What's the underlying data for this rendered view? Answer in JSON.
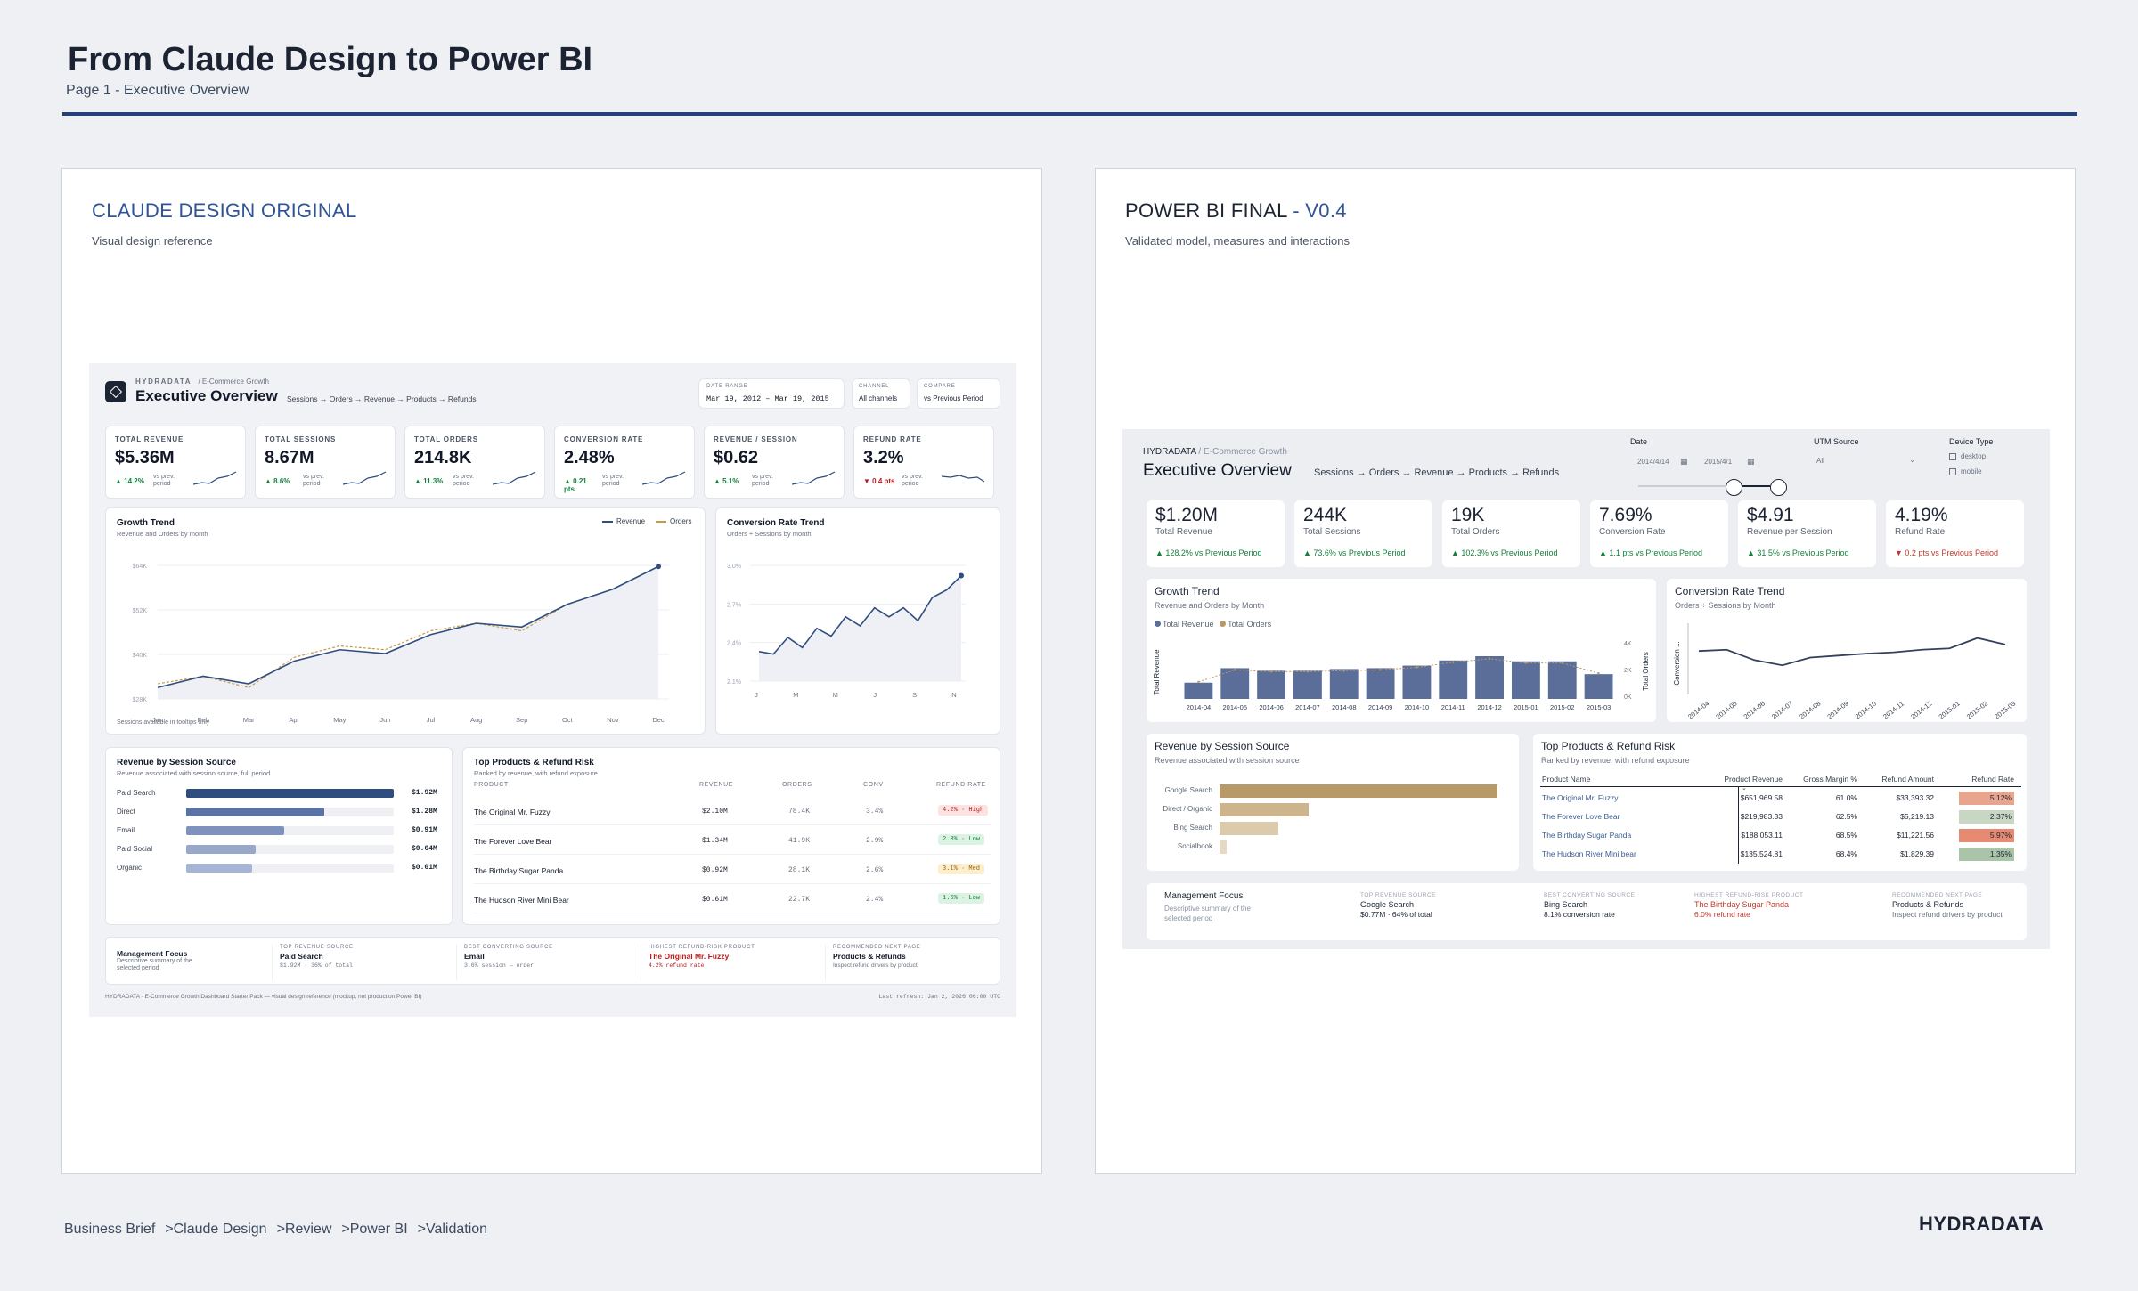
{
  "header": {
    "title": "From Claude Design to Power BI",
    "subtitle": "Page 1 - Executive Overview"
  },
  "left_panel": {
    "title": "CLAUDE DESIGN ORIGINAL",
    "subtitle": "Visual design reference"
  },
  "right_panel": {
    "title_main": "POWER BI FINAL",
    "title_suffix": " - V0.4",
    "subtitle": "Validated model, measures and interactions"
  },
  "breadcrumb": [
    "Business Brief",
    "Claude Design",
    "Review",
    "Power BI",
    "Validation"
  ],
  "breadcrumb_sep": ">",
  "brand": "HYDRADATA",
  "colors": {
    "navy": "#24407a",
    "accent_blue": "#2f5597",
    "good": "#15803d",
    "bad": "#b91c1c",
    "gold": "#b89968"
  },
  "left": {
    "brand_small": "HYDRADATA",
    "brand_sub": "/ E-Commerce Growth",
    "title": "Executive Overview",
    "flow": "Sessions → Orders → Revenue → Products → Refunds",
    "date_range_label": "DATE RANGE",
    "date_range": "Mar 19, 2012 – Mar 19, 2015",
    "channel_label": "CHANNEL",
    "channel": "All channels",
    "compare_label": "COMPARE",
    "compare": "vs Previous Period",
    "kpis": [
      {
        "label": "TOTAL REVENUE",
        "value": "$5.36M",
        "delta": "▲ 14.2%",
        "cmp": "vs prev. period",
        "neg": false
      },
      {
        "label": "TOTAL SESSIONS",
        "value": "8.67M",
        "delta": "▲ 8.6%",
        "cmp": "vs prev. period",
        "neg": false
      },
      {
        "label": "TOTAL ORDERS",
        "value": "214.8K",
        "delta": "▲ 11.3%",
        "cmp": "vs prev. period",
        "neg": false
      },
      {
        "label": "CONVERSION RATE",
        "value": "2.48%",
        "delta": "▲ 0.21 pts",
        "cmp": "vs prev. period",
        "neg": false
      },
      {
        "label": "REVENUE / SESSION",
        "value": "$0.62",
        "delta": "▲ 5.1%",
        "cmp": "vs prev. period",
        "neg": false
      },
      {
        "label": "REFUND RATE",
        "value": "3.2%",
        "delta": "▼ 0.4 pts",
        "cmp": "vs prev. period",
        "neg": true
      }
    ],
    "growth": {
      "title": "Growth Trend",
      "subtitle": "Revenue and Orders by month",
      "legend_rev": "Revenue",
      "legend_ord": "Orders",
      "note": "Sessions available in tooltips only",
      "months": [
        "Jan",
        "Feb",
        "Mar",
        "Apr",
        "May",
        "Jun",
        "Jul",
        "Aug",
        "Sep",
        "Oct",
        "Nov",
        "Dec"
      ],
      "yticks": [
        "$64K",
        "$52K",
        "$40K",
        "$28K"
      ],
      "revenue": [
        29,
        32,
        30,
        36,
        39,
        38,
        43,
        46,
        45,
        51,
        55,
        61
      ],
      "orders": [
        30,
        32,
        29,
        37,
        40,
        39,
        44,
        46,
        44,
        51,
        55,
        61
      ],
      "ymin": 26,
      "ymax": 66
    },
    "conv": {
      "title": "Conversion Rate Trend",
      "subtitle": "Orders ÷ Sessions by month",
      "xticks": [
        "J",
        "M",
        "M",
        "J",
        "S",
        "N"
      ],
      "yticks": [
        "3.0%",
        "2.7%",
        "2.4%",
        "2.1%"
      ],
      "values": [
        2.33,
        2.31,
        2.44,
        2.36,
        2.51,
        2.45,
        2.6,
        2.53,
        2.67,
        2.6,
        2.67,
        2.57,
        2.75,
        2.81,
        2.92
      ],
      "ymin": 2.1,
      "ymax": 3.0
    },
    "sources": {
      "title": "Revenue by Session Source",
      "subtitle": "Revenue associated with session source, full period",
      "items": [
        {
          "label": "Paid Search",
          "value": "$1.92M",
          "v": 1.92
        },
        {
          "label": "Direct",
          "value": "$1.28M",
          "v": 1.28
        },
        {
          "label": "Email",
          "value": "$0.91M",
          "v": 0.91
        },
        {
          "label": "Paid Social",
          "value": "$0.64M",
          "v": 0.64
        },
        {
          "label": "Organic",
          "value": "$0.61M",
          "v": 0.61
        }
      ]
    },
    "products": {
      "title": "Top Products & Refund Risk",
      "subtitle": "Ranked by revenue, with refund exposure",
      "headers": [
        "PRODUCT",
        "REVENUE",
        "ORDERS",
        "CONV",
        "REFUND RATE"
      ],
      "rows": [
        {
          "name": "The Original Mr. Fuzzy",
          "rev": "$2.10M",
          "ord": "78.4K",
          "conv": "3.4%",
          "refund": "4.2% · High",
          "lvl": "high"
        },
        {
          "name": "The Forever Love Bear",
          "rev": "$1.34M",
          "ord": "41.9K",
          "conv": "2.9%",
          "refund": "2.3% · Low",
          "lvl": "low"
        },
        {
          "name": "The Birthday Sugar Panda",
          "rev": "$0.92M",
          "ord": "28.1K",
          "conv": "2.6%",
          "refund": "3.1% · Med",
          "lvl": "med"
        },
        {
          "name": "The Hudson River Mini Bear",
          "rev": "$0.61M",
          "ord": "22.7K",
          "conv": "2.4%",
          "refund": "1.6% · Low",
          "lvl": "low"
        }
      ]
    },
    "focus": {
      "title": "Management Focus",
      "desc": "Descriptive summary of the selected period",
      "items": [
        {
          "label": "TOP REVENUE SOURCE",
          "value": "Paid Search",
          "sub": "$1.92M · 36% of total",
          "red": false
        },
        {
          "label": "BEST CONVERTING SOURCE",
          "value": "Email",
          "sub": "3.6% session → order",
          "red": false
        },
        {
          "label": "HIGHEST REFUND-RISK PRODUCT",
          "value": "The Original Mr. Fuzzy",
          "sub": "4.2% refund rate",
          "red": true
        },
        {
          "label": "RECOMMENDED NEXT PAGE",
          "value": "Products & Refunds",
          "sub": "Inspect refund drivers by product",
          "red": false
        }
      ]
    },
    "footer": "HYDRADATA · E-Commerce Growth Dashboard Starter Pack — visual design reference (mockup, not production Power BI)",
    "refresh": "Last refresh: Jan 2, 2026 06:00 UTC"
  },
  "right": {
    "brand_small": "HYDRADATA",
    "brand_sub": "/ E-Commerce Growth",
    "title": "Executive Overview",
    "flow": "Sessions → Orders → Revenue → Products → Refunds",
    "date_label": "Date",
    "date_from": "2014/4/14",
    "date_to": "2015/4/1",
    "utm_label": "UTM Source",
    "utm_value": "All",
    "device_label": "Device Type",
    "devices": [
      "desktop",
      "mobile"
    ],
    "kpis": [
      {
        "value": "$1.20M",
        "name": "Total Revenue",
        "delta": "▲ 128.2% vs Previous Period",
        "neg": false
      },
      {
        "value": "244K",
        "name": "Total Sessions",
        "delta": "▲ 73.6% vs Previous Period",
        "neg": false
      },
      {
        "value": "19K",
        "name": "Total Orders",
        "delta": "▲ 102.3% vs Previous Period",
        "neg": false
      },
      {
        "value": "7.69%",
        "name": "Conversion Rate",
        "delta": "▲ 1.1 pts vs Previous Period",
        "neg": false
      },
      {
        "value": "$4.91",
        "name": "Revenue per Session",
        "delta": "▲ 31.5% vs Previous Period",
        "neg": false
      },
      {
        "value": "4.19%",
        "name": "Refund Rate",
        "delta": "▼ 0.2 pts vs Previous Period",
        "neg": true
      }
    ],
    "growth": {
      "title": "Growth Trend",
      "subtitle": "Revenue and Orders by Month",
      "legend_rev": "Total Revenue",
      "legend_ord": "Total Orders",
      "y_left": "Total Revenue",
      "y_right": "Total Orders",
      "yticks_right": [
        "4K",
        "2K",
        "0K"
      ],
      "months": [
        "2014-04",
        "2014-05",
        "2014-06",
        "2014-07",
        "2014-08",
        "2014-09",
        "2014-10",
        "2014-11",
        "2014-12",
        "2015-01",
        "2015-02",
        "2015-03"
      ],
      "bars": [
        0.38,
        0.72,
        0.66,
        0.66,
        0.7,
        0.72,
        0.78,
        0.9,
        1.0,
        0.88,
        0.88,
        0.58
      ],
      "orders": [
        0.4,
        0.68,
        0.64,
        0.64,
        0.66,
        0.68,
        0.74,
        0.86,
        0.94,
        0.84,
        0.84,
        0.6
      ]
    },
    "conv": {
      "title": "Conversion Rate Trend",
      "subtitle": "Orders ÷ Sessions by Month",
      "y_label": "Conversion ...",
      "months": [
        "2014-04",
        "2014-05",
        "2014-06",
        "2014-07",
        "2014-08",
        "2014-09",
        "2014-10",
        "2014-11",
        "2014-12",
        "2015-01",
        "2015-02",
        "2015-03"
      ],
      "values": [
        0.6,
        0.62,
        0.46,
        0.38,
        0.5,
        0.53,
        0.56,
        0.58,
        0.62,
        0.64,
        0.8,
        0.7
      ]
    },
    "sources": {
      "title": "Revenue by Session Source",
      "subtitle": "Revenue associated with session source",
      "items": [
        {
          "label": "Google Search",
          "v": 1.0
        },
        {
          "label": "Direct / Organic",
          "v": 0.32
        },
        {
          "label": "Bing Search",
          "v": 0.21
        },
        {
          "label": "Socialbook",
          "v": 0.025
        }
      ]
    },
    "products": {
      "title": "Top Products & Refund Risk",
      "subtitle": "Ranked by revenue, with refund exposure",
      "headers": [
        "Product Name",
        "Product Revenue",
        "Gross Margin %",
        "Refund Amount",
        "Refund Rate"
      ],
      "rows": [
        {
          "name": "The Original Mr. Fuzzy",
          "rev": "$651,969.58",
          "gm": "61.0%",
          "ra": "$33,393.32",
          "rr": "5.12%",
          "c": "#e8a48c"
        },
        {
          "name": "The Forever Love Bear",
          "rev": "$219,983.33",
          "gm": "62.5%",
          "ra": "$5,219.13",
          "rr": "2.37%",
          "c": "#c8d6c4"
        },
        {
          "name": "The Birthday Sugar Panda",
          "rev": "$188,053.11",
          "gm": "68.5%",
          "ra": "$11,221.56",
          "rr": "5.97%",
          "c": "#e68a72"
        },
        {
          "name": "The Hudson River Mini bear",
          "rev": "$135,524.81",
          "gm": "68.4%",
          "ra": "$1,829.39",
          "rr": "1.35%",
          "c": "#a9c4a9"
        }
      ]
    },
    "focus": {
      "title": "Management Focus",
      "desc": "Descriptive summary of the selected period",
      "items": [
        {
          "label": "TOP REVENUE SOURCE",
          "value": "Google Search",
          "sub": "$0.77M · 64% of total",
          "red": false
        },
        {
          "label": "BEST CONVERTING SOURCE",
          "value": "Bing Search",
          "sub": "8.1% conversion rate",
          "red": false
        },
        {
          "label": "HIGHEST REFUND-RISK PRODUCT",
          "value": "The Birthday Sugar Panda",
          "sub": "6.0% refund rate",
          "red": true
        },
        {
          "label": "RECOMMENDED NEXT PAGE",
          "value": "Products & Refunds",
          "sub": "Inspect refund drivers by product",
          "red": false
        }
      ]
    }
  }
}
